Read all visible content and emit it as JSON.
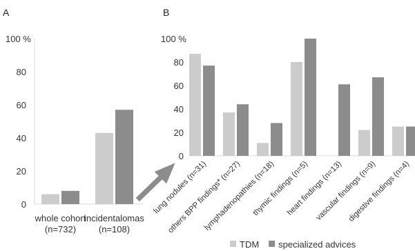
{
  "chart_data": [
    {
      "panel": "A",
      "type": "bar",
      "ylim": [
        0,
        100
      ],
      "y_unit": "%",
      "yticks": [
        "0",
        "20",
        "40",
        "60",
        "80",
        "100 %"
      ],
      "categories": [
        [
          "whole cohort",
          "(n=732)"
        ],
        [
          "incidentalomas",
          "(n=108)"
        ]
      ],
      "series": [
        {
          "name": "TDM",
          "color": "#cccccc",
          "values": [
            6,
            43
          ]
        },
        {
          "name": "specialized advices",
          "color": "#8c8c8c",
          "values": [
            8,
            57
          ]
        }
      ]
    },
    {
      "panel": "B",
      "type": "bar",
      "ylim": [
        0,
        100
      ],
      "y_unit": "%",
      "yticks": [
        "0",
        "20",
        "40",
        "60",
        "80",
        "100 %"
      ],
      "categories": [
        "lung nodules (n=31)",
        "others BPP findings* (n=27)",
        "lymphadenopathies (n=18)",
        "thymic findings (n=5)",
        "heart findings (n=13)",
        "vascular findings (n=9)",
        "digestive findings (n=4)"
      ],
      "series": [
        {
          "name": "TDM",
          "color": "#cccccc",
          "values": [
            87,
            37,
            11,
            80,
            0,
            22,
            25
          ]
        },
        {
          "name": "specialized advices",
          "color": "#8c8c8c",
          "values": [
            77,
            44,
            28,
            100,
            61,
            67,
            25
          ]
        }
      ]
    }
  ],
  "legend": [
    {
      "label": "TDM",
      "color": "#cccccc"
    },
    {
      "label": "specialized advices",
      "color": "#8c8c8c"
    }
  ],
  "arrow_color": "#8c8c8c"
}
